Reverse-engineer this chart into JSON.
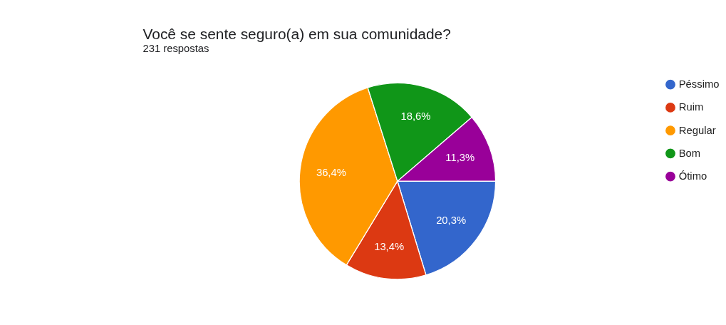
{
  "chart_data": {
    "type": "pie",
    "title": "Você se sente seguro(a) em sua comunidade?",
    "subtitle": "231 respostas",
    "categories": [
      "Péssimo",
      "Ruim",
      "Regular",
      "Bom",
      "Ótimo"
    ],
    "values": [
      20.3,
      13.4,
      36.4,
      18.6,
      11.3
    ],
    "colors": [
      "#3366cc",
      "#dc3912",
      "#ff9900",
      "#109618",
      "#990099"
    ],
    "value_labels": [
      "20,3%",
      "13,4%",
      "36,4%",
      "18,6%",
      "11,3%"
    ],
    "legend": "right"
  }
}
